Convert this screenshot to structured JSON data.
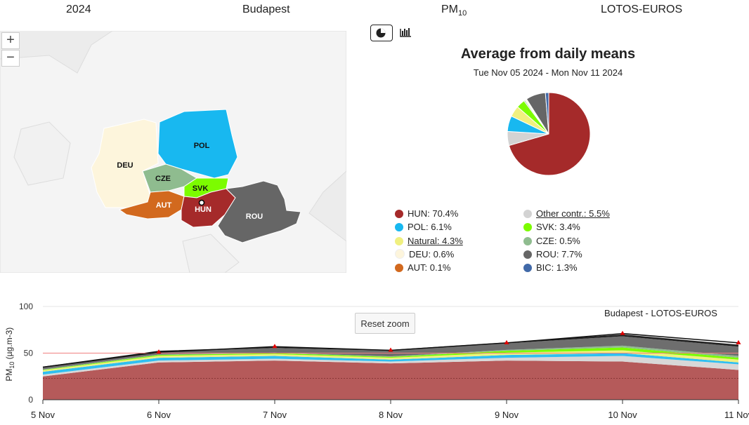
{
  "header": {
    "year": "2024",
    "location": "Budapest",
    "pollutant": "PM",
    "pollutant_sub": "10",
    "model": "LOTOS-EUROS"
  },
  "map": {
    "zoom_in_label": "+",
    "zoom_out_label": "−",
    "countries": [
      "DEU",
      "POL",
      "CZE",
      "SVK",
      "AUT",
      "HUN",
      "ROU"
    ]
  },
  "view_toggle": {
    "pie_icon": "pie-chart-icon",
    "bar_icon": "bar-chart-icon"
  },
  "chart_data": [
    {
      "type": "pie",
      "title": "Average from daily means",
      "subtitle": "Tue Nov 05 2024 - Mon Nov 11 2024",
      "legend_placement": "bottom",
      "slices": [
        {
          "name": "HUN",
          "value": 70.4,
          "color": "#a52a2a",
          "label": "HUN: 70.4%"
        },
        {
          "name": "Other contr.",
          "value": 5.5,
          "color": "#d3d3d3",
          "label": "Other contr.: 5.5%"
        },
        {
          "name": "POL",
          "value": 6.1,
          "color": "#18b8f0",
          "label": "POL: 6.1%"
        },
        {
          "name": "SVK",
          "value": 3.4,
          "color": "#7cfc00",
          "label": "SVK: 3.4%"
        },
        {
          "name": "Natural",
          "value": 4.3,
          "color": "#f0f080",
          "label": "Natural: 4.3%"
        },
        {
          "name": "CZE",
          "value": 0.5,
          "color": "#8fbc8f",
          "label": "CZE: 0.5%"
        },
        {
          "name": "DEU",
          "value": 0.6,
          "color": "#fdf5dc",
          "label": "DEU: 0.6%"
        },
        {
          "name": "ROU",
          "value": 7.7,
          "color": "#666666",
          "label": "ROU: 7.7%"
        },
        {
          "name": "AUT",
          "value": 0.1,
          "color": "#d2691e",
          "label": "AUT: 0.1%"
        },
        {
          "name": "BIC",
          "value": 1.3,
          "color": "#4169a8",
          "label": "BIC: 1.3%"
        }
      ]
    },
    {
      "type": "area",
      "stacked": true,
      "caption": "Budapest - LOTOS-EUROS",
      "reset_zoom_label": "Reset zoom",
      "ylabel": "PM",
      "ylabel_sub": "10",
      "ylabel_unit": " (µg.m-3)",
      "ylim": [
        0,
        100
      ],
      "yticks": [
        "0",
        "50",
        "100"
      ],
      "categories": [
        "5 Nov",
        "6 Nov",
        "7 Nov",
        "8 Nov",
        "9 Nov",
        "10 Nov",
        "11 Nov"
      ],
      "limit_line": 50,
      "series": [
        {
          "name": "HUN",
          "color": "#b55a5a",
          "values": [
            25,
            40,
            42,
            39,
            42,
            41,
            32
          ]
        },
        {
          "name": "Other contr.",
          "color": "#d8d8d8",
          "values": [
            2,
            2,
            2,
            2,
            3,
            6,
            6
          ]
        },
        {
          "name": "POL",
          "color": "#30bff0",
          "values": [
            3,
            3,
            3,
            2,
            3,
            3,
            2
          ]
        },
        {
          "name": "Natural",
          "color": "#f0f080",
          "values": [
            1.5,
            2,
            2,
            2,
            2.5,
            3,
            3
          ]
        },
        {
          "name": "SVK",
          "color": "#7cfc00",
          "values": [
            0.5,
            1,
            1,
            1,
            2,
            3,
            2
          ]
        },
        {
          "name": "CZE",
          "color": "#8fbc8f",
          "values": [
            0.5,
            0.5,
            0.5,
            0.5,
            1,
            2,
            2
          ]
        },
        {
          "name": "ROU",
          "color": "#6e6e6e",
          "values": [
            2,
            3,
            5,
            6,
            7,
            10,
            10
          ]
        },
        {
          "name": "BIC",
          "color": "#202020",
          "values": [
            1,
            1,
            1,
            1,
            1,
            2,
            2
          ]
        }
      ],
      "total_markers": [
        35,
        51,
        57,
        53,
        61,
        71,
        61
      ]
    }
  ]
}
